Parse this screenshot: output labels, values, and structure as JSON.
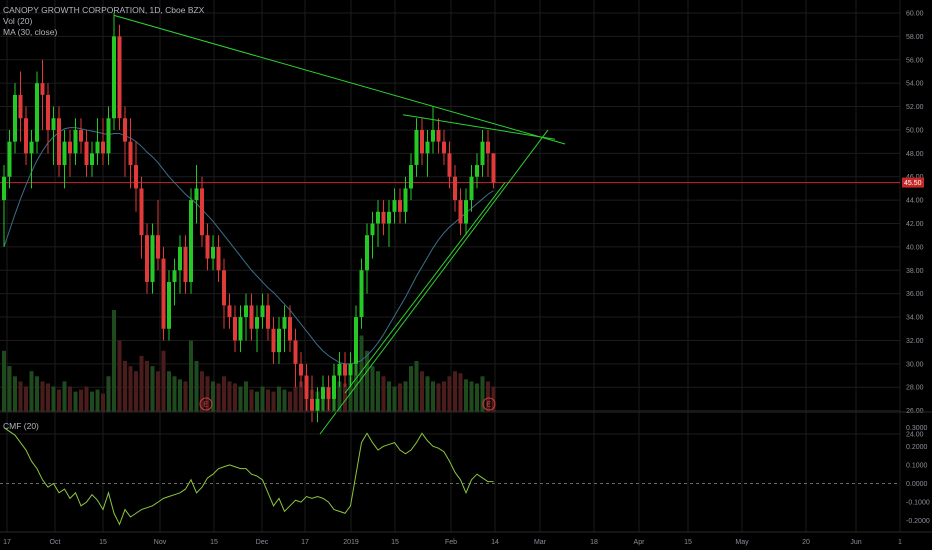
{
  "legend": {
    "title": "CANOPY GROWTH CORPORATION, 1D, Cboe BZX",
    "vol": "Vol (20)",
    "ma": "MA (30, close)"
  },
  "cmf_label": "CMF (20)",
  "colors": {
    "up": "#26c826",
    "down": "#e03a3a",
    "ma": "#3d6e8c",
    "trend": "#2ed12e",
    "cmf": "#8cc63f",
    "last_price": "#c62828",
    "grid": "#1c1c1c"
  },
  "chart_data": [
    {
      "type": "candlestick",
      "title": "CANOPY GROWTH CORPORATION, 1D, Cboe BZX",
      "ylim": [
        24,
        60
      ],
      "y_ticks": [
        "60.00",
        "58.00",
        "56.00",
        "54.00",
        "52.00",
        "50.00",
        "48.00",
        "46.00",
        "44.00",
        "42.00",
        "40.00",
        "38.00",
        "36.00",
        "34.00",
        "32.00",
        "30.00",
        "28.00",
        "26.00",
        "24.00"
      ],
      "x_ticks": [
        "17",
        "Oct",
        "15",
        "Nov",
        "15",
        "Dec",
        "17",
        "2019",
        "15",
        "Feb",
        "14",
        "Mar",
        "18",
        "Apr",
        "15",
        "May",
        "20",
        "Jun",
        "1"
      ],
      "last_price": "45.50",
      "earnings_markers": [
        "E",
        "E"
      ],
      "candles": [
        [
          44,
          47,
          40,
          46
        ],
        [
          46,
          50,
          45,
          49
        ],
        [
          49,
          54,
          48,
          53
        ],
        [
          53,
          55,
          49,
          51
        ],
        [
          51,
          52,
          47,
          48
        ],
        [
          48,
          50,
          45,
          49
        ],
        [
          49,
          55,
          48,
          54
        ],
        [
          54,
          56,
          50,
          53
        ],
        [
          53,
          54,
          48,
          50
        ],
        [
          50,
          52,
          47,
          51
        ],
        [
          51,
          52,
          46,
          47
        ],
        [
          47,
          50,
          45,
          49
        ],
        [
          49,
          50,
          46,
          48
        ],
        [
          48,
          51,
          47,
          50
        ],
        [
          50,
          51,
          48,
          49
        ],
        [
          49,
          50,
          46,
          47
        ],
        [
          47,
          49,
          46,
          48
        ],
        [
          48,
          51,
          47,
          49
        ],
        [
          49,
          51,
          47,
          48
        ],
        [
          48,
          52,
          47,
          51
        ],
        [
          51,
          60,
          50,
          58
        ],
        [
          58,
          59,
          50,
          51
        ],
        [
          51,
          52,
          46,
          49
        ],
        [
          49,
          51,
          45,
          47
        ],
        [
          47,
          49,
          43,
          45
        ],
        [
          45,
          46,
          39,
          41
        ],
        [
          41,
          42,
          36,
          37
        ],
        [
          37,
          42,
          36,
          41
        ],
        [
          41,
          44,
          38,
          39
        ],
        [
          39,
          40,
          32,
          33
        ],
        [
          33,
          38,
          32,
          37
        ],
        [
          37,
          39,
          35,
          38
        ],
        [
          38,
          41,
          36,
          40
        ],
        [
          40,
          41,
          36,
          37
        ],
        [
          37,
          45,
          36,
          44
        ],
        [
          44,
          47,
          42,
          45
        ],
        [
          45,
          46,
          40,
          41
        ],
        [
          41,
          42,
          38,
          39
        ],
        [
          39,
          41,
          38,
          40
        ],
        [
          40,
          41,
          37,
          38
        ],
        [
          38,
          39,
          33,
          35
        ],
        [
          35,
          36,
          33,
          34
        ],
        [
          34,
          35,
          31,
          32
        ],
        [
          32,
          35,
          31,
          34
        ],
        [
          34,
          36,
          32,
          35
        ],
        [
          35,
          36,
          32,
          33
        ],
        [
          33,
          35,
          31,
          34
        ],
        [
          34,
          36,
          33,
          35
        ],
        [
          35,
          36,
          32,
          33
        ],
        [
          33,
          34,
          30,
          31
        ],
        [
          31,
          34,
          30,
          33
        ],
        [
          33,
          35,
          31,
          34
        ],
        [
          34,
          35,
          31,
          32
        ],
        [
          32,
          33,
          28,
          30
        ],
        [
          30,
          31,
          28,
          29
        ],
        [
          29,
          30,
          26,
          27
        ],
        [
          27,
          29,
          25,
          26
        ],
        [
          26,
          28,
          25,
          27
        ],
        [
          27,
          29,
          26,
          28
        ],
        [
          28,
          29,
          26,
          27
        ],
        [
          27,
          30,
          26,
          29
        ],
        [
          29,
          31,
          28,
          30
        ],
        [
          30,
          31,
          28,
          29
        ],
        [
          29,
          31,
          28,
          30
        ],
        [
          30,
          35,
          29,
          34
        ],
        [
          34,
          39,
          33,
          38
        ],
        [
          38,
          42,
          36,
          41
        ],
        [
          41,
          43,
          39,
          42
        ],
        [
          42,
          44,
          40,
          43
        ],
        [
          43,
          44,
          41,
          42
        ],
        [
          42,
          44,
          40,
          43
        ],
        [
          43,
          45,
          42,
          44
        ],
        [
          44,
          45,
          42,
          43
        ],
        [
          43,
          46,
          42,
          45
        ],
        [
          45,
          48,
          44,
          47
        ],
        [
          47,
          51,
          46,
          50
        ],
        [
          50,
          51,
          47,
          48
        ],
        [
          48,
          50,
          46,
          49
        ],
        [
          49,
          52,
          48,
          50
        ],
        [
          50,
          51,
          48,
          49
        ],
        [
          49,
          50,
          47,
          48
        ],
        [
          48,
          49,
          45,
          46
        ],
        [
          46,
          47,
          43,
          44
        ],
        [
          44,
          45,
          41,
          42
        ],
        [
          42,
          45,
          41,
          44
        ],
        [
          44,
          47,
          43,
          46
        ],
        [
          46,
          48,
          45,
          47
        ],
        [
          47,
          50,
          46,
          49
        ],
        [
          49,
          50,
          46,
          48
        ],
        [
          48,
          48,
          45,
          45.5
        ]
      ],
      "volume_series": [
        0.6,
        0.45,
        0.35,
        0.3,
        0.25,
        0.4,
        0.35,
        0.3,
        0.28,
        0.25,
        0.22,
        0.3,
        0.25,
        0.2,
        0.22,
        0.25,
        0.2,
        0.22,
        0.18,
        0.35,
        1.0,
        0.7,
        0.5,
        0.45,
        0.4,
        0.55,
        0.5,
        0.45,
        0.4,
        0.6,
        0.4,
        0.35,
        0.32,
        0.3,
        0.7,
        0.5,
        0.4,
        0.35,
        0.3,
        0.28,
        0.35,
        0.3,
        0.28,
        0.25,
        0.3,
        0.22,
        0.2,
        0.25,
        0.22,
        0.2,
        0.25,
        0.22,
        0.2,
        0.25,
        0.3,
        0.28,
        0.22,
        0.2,
        0.25,
        0.22,
        0.25,
        0.3,
        0.28,
        0.35,
        0.85,
        0.75,
        0.6,
        0.45,
        0.4,
        0.35,
        0.3,
        0.25,
        0.28,
        0.3,
        0.45,
        0.5,
        0.4,
        0.35,
        0.3,
        0.28,
        0.3,
        0.35,
        0.4,
        0.38,
        0.32,
        0.3,
        0.28,
        0.35,
        0.3,
        0.25
      ],
      "ma_series": [
        40.0,
        41.4,
        42.8,
        44.1,
        45.3,
        46.4,
        47.4,
        48.2,
        48.9,
        49.4,
        49.8,
        50.1,
        50.2,
        50.2,
        50.1,
        50.0,
        49.9,
        49.8,
        49.7,
        49.6,
        49.7,
        49.7,
        49.5,
        49.3,
        49.0,
        48.6,
        48.1,
        47.7,
        47.2,
        46.6,
        46.0,
        45.5,
        45.0,
        44.5,
        44.1,
        43.7,
        43.2,
        42.7,
        42.2,
        41.6,
        41.0,
        40.4,
        39.8,
        39.2,
        38.6,
        38.0,
        37.5,
        37.0,
        36.5,
        36.1,
        35.6,
        35.1,
        34.6,
        34.0,
        33.4,
        32.8,
        32.2,
        31.6,
        31.1,
        30.7,
        30.4,
        30.1,
        30.0,
        30.0,
        30.1,
        30.3,
        30.7,
        31.2,
        31.8,
        32.5,
        33.3,
        34.1,
        34.9,
        35.7,
        36.6,
        37.5,
        38.3,
        39.1,
        39.9,
        40.6,
        41.2,
        41.7,
        42.1,
        42.5,
        42.9,
        43.3,
        43.7,
        44.1,
        44.5,
        44.8
      ]
    },
    {
      "type": "line",
      "title": "CMF (20)",
      "ylim": [
        -0.25,
        0.32
      ],
      "y_ticks": [
        "0.3000",
        "0.2000",
        "0.1000",
        "0.0000",
        "-0.1000",
        "-0.2000"
      ],
      "zero_line": 0,
      "series": [
        {
          "values": [
            0.3,
            0.28,
            0.26,
            0.22,
            0.18,
            0.12,
            0.08,
            0.02,
            -0.02,
            0.0,
            -0.05,
            -0.03,
            -0.08,
            -0.05,
            -0.12,
            -0.1,
            -0.06,
            -0.09,
            -0.14,
            -0.05,
            -0.16,
            -0.22,
            -0.14,
            -0.18,
            -0.16,
            -0.14,
            -0.13,
            -0.12,
            -0.1,
            -0.08,
            -0.07,
            -0.06,
            -0.05,
            -0.03,
            0.02,
            -0.05,
            -0.02,
            0.03,
            0.05,
            0.08,
            0.09,
            0.1,
            0.09,
            0.08,
            0.08,
            0.05,
            0.04,
            0.02,
            -0.05,
            -0.12,
            -0.08,
            -0.15,
            -0.12,
            -0.09,
            -0.1,
            -0.07,
            -0.08,
            -0.07,
            -0.08,
            -0.1,
            -0.14,
            -0.15,
            -0.16,
            -0.12,
            0.05,
            0.22,
            0.27,
            0.22,
            0.18,
            0.2,
            0.21,
            0.22,
            0.18,
            0.16,
            0.18,
            0.22,
            0.27,
            0.23,
            0.2,
            0.19,
            0.17,
            0.12,
            0.06,
            0.02,
            -0.05,
            0.02,
            0.05,
            0.03,
            0.01,
            0.01
          ]
        }
      ]
    }
  ]
}
